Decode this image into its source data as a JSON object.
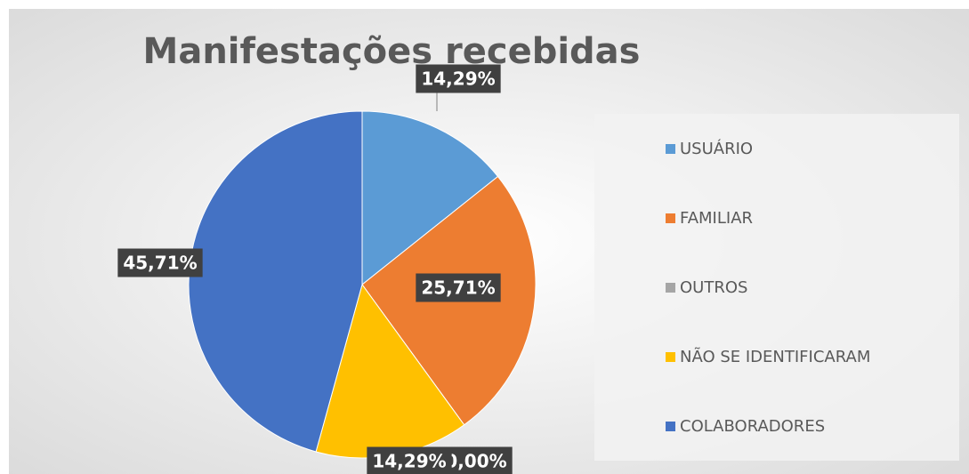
{
  "chart_data": {
    "type": "pie",
    "title": "Manifestações recebidas",
    "categories": [
      "USUÁRIO",
      "FAMILIAR",
      "OUTROS",
      "NÃO SE IDENTIFICARAM",
      "COLABORADORES"
    ],
    "values": [
      14.29,
      25.71,
      0,
      14.29,
      45.71
    ],
    "value_labels": [
      "14,29%",
      "25,71%",
      "0,00%",
      "14,29%",
      "45,71%"
    ],
    "colors": [
      "#5b9bd5",
      "#ed7d31",
      "#a5a5a5",
      "#ffc000",
      "#4472c4"
    ],
    "legend": "right"
  }
}
